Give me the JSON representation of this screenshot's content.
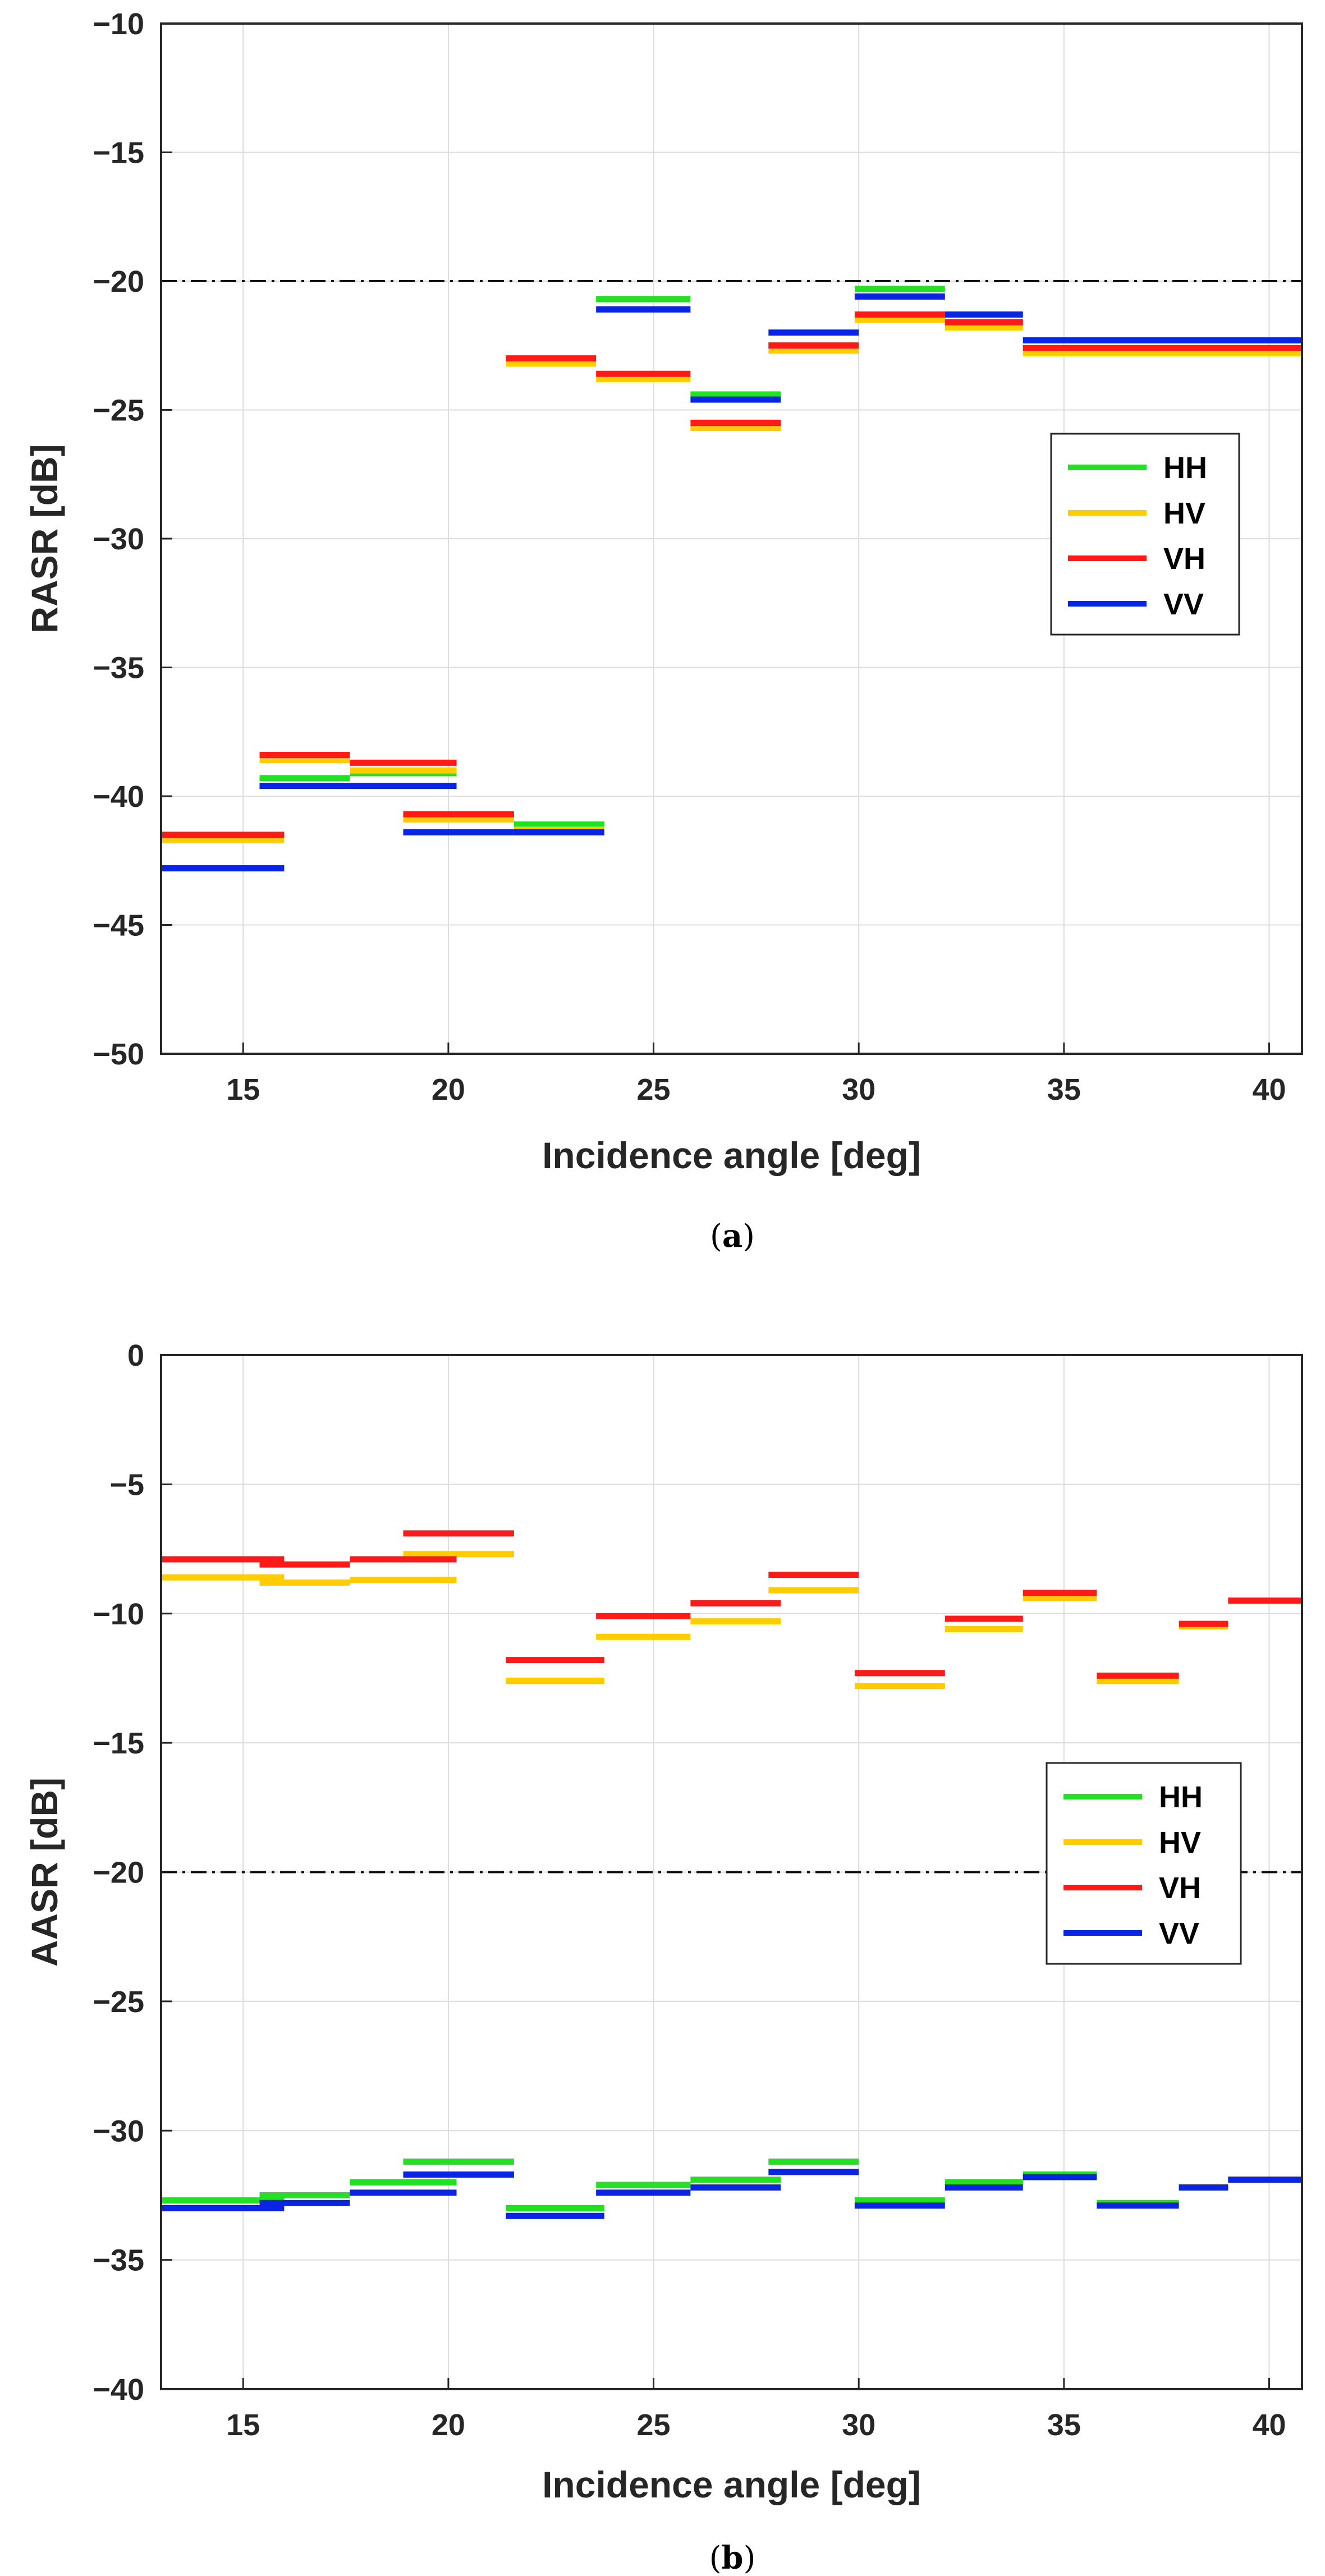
{
  "chart_data": [
    {
      "type": "line",
      "panel": "a",
      "caption": "(a)",
      "caption_letter": "a",
      "xlabel": "Incidence angle [deg]",
      "ylabel": "RASR [dB]",
      "xlim": [
        13,
        40.8
      ],
      "ylim": [
        -50,
        -10
      ],
      "xticks": [
        15,
        20,
        25,
        30,
        35,
        40
      ],
      "yticks": [
        -10,
        -15,
        -20,
        -25,
        -30,
        -35,
        -40,
        -45,
        -50
      ],
      "ytick_labels": [
        "−10",
        "−15",
        "−20",
        "−25",
        "−30",
        "−35",
        "−40",
        "−45",
        "−50"
      ],
      "grid": true,
      "legend_position": "right",
      "threshold": -20,
      "series": [
        {
          "name": "HH",
          "color": "#22e022",
          "segments": [
            [
              13,
              16,
              -41.5
            ],
            [
              15.4,
              17.6,
              -39.3
            ],
            [
              17.6,
              20.2,
              -39.1
            ],
            [
              18.9,
              21.6,
              -40.9
            ],
            [
              21.6,
              23.8,
              -41.1
            ],
            [
              21.4,
              23.6,
              -23.0
            ],
            [
              23.6,
              25.9,
              -20.7
            ],
            [
              25.9,
              28.1,
              -24.4
            ],
            [
              27.8,
              30.0,
              -22.5
            ],
            [
              29.9,
              32.1,
              -20.3
            ],
            [
              32.1,
              34.0,
              -21.6
            ],
            [
              34.0,
              40.8,
              -22.6
            ]
          ]
        },
        {
          "name": "HV",
          "color": "#ffcc00",
          "segments": [
            [
              13,
              16,
              -41.7
            ],
            [
              15.4,
              17.6,
              -38.6
            ],
            [
              17.6,
              20.2,
              -39.0
            ],
            [
              18.9,
              21.6,
              -40.9
            ],
            [
              21.6,
              23.8,
              -41.3
            ],
            [
              21.4,
              23.6,
              -23.2
            ],
            [
              23.6,
              25.9,
              -23.8
            ],
            [
              25.9,
              28.1,
              -25.7
            ],
            [
              27.8,
              30.0,
              -22.7
            ],
            [
              29.9,
              32.1,
              -21.5
            ],
            [
              32.1,
              34.0,
              -21.8
            ],
            [
              34.0,
              40.8,
              -22.8
            ]
          ]
        },
        {
          "name": "VH",
          "color": "#ff1a1a",
          "segments": [
            [
              13,
              16,
              -41.5
            ],
            [
              15.4,
              17.6,
              -38.4
            ],
            [
              17.6,
              20.2,
              -38.7
            ],
            [
              18.9,
              21.6,
              -40.7
            ],
            [
              21.4,
              23.6,
              -23.0
            ],
            [
              23.6,
              25.9,
              -23.6
            ],
            [
              25.9,
              28.1,
              -25.5
            ],
            [
              27.8,
              30.0,
              -22.5
            ],
            [
              29.9,
              32.1,
              -21.3
            ],
            [
              32.1,
              34.0,
              -21.6
            ],
            [
              34.0,
              40.8,
              -22.6
            ]
          ]
        },
        {
          "name": "VV",
          "color": "#0a24e6",
          "segments": [
            [
              13,
              16,
              -42.8
            ],
            [
              15.4,
              17.6,
              -39.6
            ],
            [
              17.6,
              20.2,
              -39.6
            ],
            [
              18.9,
              21.6,
              -41.4
            ],
            [
              21.6,
              23.8,
              -41.4
            ],
            [
              23.6,
              25.9,
              -21.1
            ],
            [
              25.9,
              28.1,
              -24.6
            ],
            [
              27.8,
              30.0,
              -22.0
            ],
            [
              29.9,
              32.1,
              -20.6
            ],
            [
              32.1,
              34.0,
              -21.3
            ],
            [
              34.0,
              40.8,
              -22.3
            ]
          ]
        }
      ]
    },
    {
      "type": "line",
      "panel": "b",
      "caption": "(b)",
      "caption_letter": "b",
      "xlabel": "Incidence angle [deg]",
      "ylabel": "AASR [dB]",
      "xlim": [
        13,
        40.8
      ],
      "ylim": [
        -40,
        0
      ],
      "xticks": [
        15,
        20,
        25,
        30,
        35,
        40
      ],
      "yticks": [
        0,
        -5,
        -10,
        -15,
        -20,
        -25,
        -30,
        -35,
        -40
      ],
      "ytick_labels": [
        "0",
        "−5",
        "−10",
        "−15",
        "−20",
        "−25",
        "−30",
        "−35",
        "−40"
      ],
      "grid": true,
      "legend_position": "right",
      "threshold": -20,
      "series": [
        {
          "name": "HH",
          "color": "#22e022",
          "segments": [
            [
              13,
              16,
              -32.7
            ],
            [
              15.4,
              17.6,
              -32.5
            ],
            [
              17.6,
              20.2,
              -32.0
            ],
            [
              18.9,
              21.6,
              -31.2
            ],
            [
              21.4,
              23.8,
              -33.0
            ],
            [
              23.6,
              25.9,
              -32.1
            ],
            [
              25.9,
              28.1,
              -31.9
            ],
            [
              27.8,
              30.0,
              -31.2
            ],
            [
              29.9,
              32.1,
              -32.7
            ],
            [
              32.1,
              34.0,
              -32.0
            ],
            [
              34.0,
              35.8,
              -31.7
            ],
            [
              35.8,
              37.8,
              -32.8
            ],
            [
              37.8,
              39.0,
              -32.2
            ],
            [
              39.0,
              40.8,
              -31.9
            ]
          ]
        },
        {
          "name": "HV",
          "color": "#ffcc00",
          "segments": [
            [
              13,
              16,
              -8.6
            ],
            [
              15.4,
              17.6,
              -8.8
            ],
            [
              17.6,
              20.2,
              -8.7
            ],
            [
              18.9,
              21.6,
              -7.7
            ],
            [
              21.4,
              23.8,
              -12.6
            ],
            [
              23.6,
              25.9,
              -10.9
            ],
            [
              25.9,
              28.1,
              -10.3
            ],
            [
              27.8,
              30.0,
              -9.1
            ],
            [
              29.9,
              32.1,
              -12.8
            ],
            [
              32.1,
              34.0,
              -10.6
            ],
            [
              34.0,
              35.8,
              -9.4
            ],
            [
              35.8,
              37.8,
              -12.6
            ],
            [
              37.8,
              39.0,
              -10.5
            ],
            [
              39.0,
              40.8,
              -9.5
            ]
          ]
        },
        {
          "name": "VH",
          "color": "#ff1a1a",
          "segments": [
            [
              13,
              16,
              -7.9
            ],
            [
              15.4,
              17.6,
              -8.1
            ],
            [
              17.6,
              20.2,
              -7.9
            ],
            [
              18.9,
              21.6,
              -6.9
            ],
            [
              21.4,
              23.8,
              -11.8
            ],
            [
              23.6,
              25.9,
              -10.1
            ],
            [
              25.9,
              28.1,
              -9.6
            ],
            [
              27.8,
              30.0,
              -8.5
            ],
            [
              29.9,
              32.1,
              -12.3
            ],
            [
              32.1,
              34.0,
              -10.2
            ],
            [
              34.0,
              35.8,
              -9.2
            ],
            [
              35.8,
              37.8,
              -12.4
            ],
            [
              37.8,
              39.0,
              -10.4
            ],
            [
              39.0,
              40.8,
              -9.5
            ]
          ]
        },
        {
          "name": "VV",
          "color": "#0a24e6",
          "segments": [
            [
              13,
              16,
              -33.0
            ],
            [
              15.4,
              17.6,
              -32.8
            ],
            [
              17.6,
              20.2,
              -32.4
            ],
            [
              18.9,
              21.6,
              -31.7
            ],
            [
              21.4,
              23.8,
              -33.3
            ],
            [
              23.6,
              25.9,
              -32.4
            ],
            [
              25.9,
              28.1,
              -32.2
            ],
            [
              27.8,
              30.0,
              -31.6
            ],
            [
              29.9,
              32.1,
              -32.9
            ],
            [
              32.1,
              34.0,
              -32.2
            ],
            [
              34.0,
              35.8,
              -31.8
            ],
            [
              35.8,
              37.8,
              -32.9
            ],
            [
              37.8,
              39.0,
              -32.2
            ],
            [
              39.0,
              40.8,
              -31.9
            ]
          ]
        }
      ]
    }
  ]
}
